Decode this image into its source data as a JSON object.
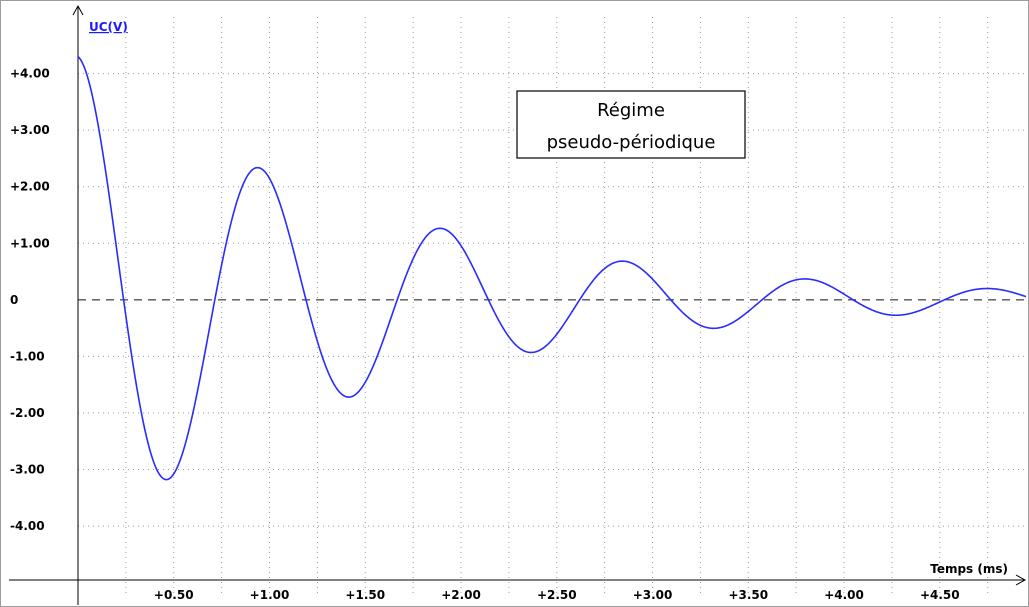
{
  "chart_data": {
    "type": "line",
    "title": "",
    "annotation": [
      "Régime",
      "pseudo-périodique"
    ],
    "xlabel": "Temps (ms)",
    "ylabel": "UC(V)",
    "xlim": [
      0,
      4.95
    ],
    "ylim": [
      -5.2,
      5.0
    ],
    "x_ticks": [
      0.5,
      1.0,
      1.5,
      2.0,
      2.5,
      3.0,
      3.5,
      4.0,
      4.5
    ],
    "x_tick_labels": [
      "+0.50",
      "+1.00",
      "+1.50",
      "+2.00",
      "+2.50",
      "+3.00",
      "+3.50",
      "+4.00",
      "+4.50"
    ],
    "y_ticks": [
      4,
      3,
      2,
      1,
      0,
      -1,
      -2,
      -3,
      -4
    ],
    "y_tick_labels": [
      "+4.00",
      "+3.00",
      "+2.00",
      "+1.00",
      "0",
      "-1.00",
      "-2.00",
      "-3.00",
      "-4.00"
    ],
    "x_minor_grid": [
      0.25,
      0.75,
      1.25,
      1.75,
      2.25,
      2.75,
      3.25,
      3.75,
      4.25,
      4.75
    ],
    "grid": true,
    "zero_line": "dashed",
    "series": [
      {
        "color": "#2b2bff",
        "model": "damped_sine",
        "amplitude": 4.3,
        "decay_per_ms": 0.645,
        "frequency_khz": 1.05,
        "phase": 1.5708,
        "peaks": [
          {
            "x": 0.0,
            "y": 4.3
          },
          {
            "x": 0.44,
            "y": -3.2
          },
          {
            "x": 0.92,
            "y": 2.35
          },
          {
            "x": 1.38,
            "y": -1.75
          },
          {
            "x": 1.86,
            "y": 1.25
          },
          {
            "x": 2.33,
            "y": -0.93
          },
          {
            "x": 2.8,
            "y": 0.67
          },
          {
            "x": 3.28,
            "y": -0.5
          },
          {
            "x": 3.76,
            "y": 0.36
          },
          {
            "x": 4.23,
            "y": -0.27
          },
          {
            "x": 4.71,
            "y": 0.2
          }
        ]
      }
    ]
  }
}
